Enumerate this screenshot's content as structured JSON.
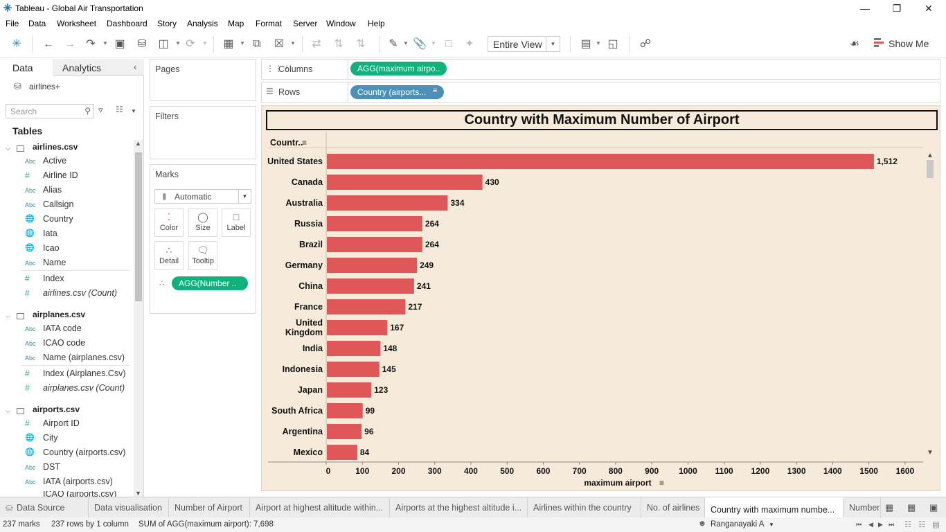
{
  "window": {
    "title": "Tableau - Global Air Transportation"
  },
  "menu": [
    "File",
    "Data",
    "Worksheet",
    "Dashboard",
    "Story",
    "Analysis",
    "Map",
    "Format",
    "Server",
    "Window",
    "Help"
  ],
  "toolbar": {
    "fit": "Entire View",
    "show_me": "Show Me"
  },
  "datapane": {
    "tab_data": "Data",
    "tab_analytics": "Analytics",
    "datasource": "airlines+",
    "search_placeholder": "Search",
    "tables_heading": "Tables",
    "tables": [
      {
        "name": "airlines.csv",
        "fields": [
          {
            "type": "Abc",
            "name": "Active"
          },
          {
            "type": "#",
            "name": "Airline ID"
          },
          {
            "type": "Abc",
            "name": "Alias"
          },
          {
            "type": "Abc",
            "name": "Callsign"
          },
          {
            "type": "geo",
            "name": "Country"
          },
          {
            "type": "geo",
            "name": "Iata"
          },
          {
            "type": "geo",
            "name": "Icao"
          },
          {
            "type": "Abc",
            "name": "Name"
          },
          {
            "type": "#",
            "name": "Index"
          },
          {
            "type": "#",
            "name": "airlines.csv (Count)"
          }
        ]
      },
      {
        "name": "airplanes.csv",
        "fields": [
          {
            "type": "Abc",
            "name": "IATA code"
          },
          {
            "type": "Abc",
            "name": "ICAO code"
          },
          {
            "type": "Abc",
            "name": "Name (airplanes.csv)"
          },
          {
            "type": "#",
            "name": "Index (Airplanes.Csv)"
          },
          {
            "type": "#",
            "name": "airplanes.csv (Count)"
          }
        ]
      },
      {
        "name": "airports.csv",
        "fields": [
          {
            "type": "#",
            "name": "Airport ID"
          },
          {
            "type": "geo",
            "name": "City"
          },
          {
            "type": "geo",
            "name": "Country (airports.csv)"
          },
          {
            "type": "Abc",
            "name": "DST"
          },
          {
            "type": "Abc",
            "name": "IATA (airports.csv)"
          },
          {
            "type": "Abc",
            "name": "ICAO (airports.csv)"
          }
        ]
      }
    ]
  },
  "cards": {
    "pages": "Pages",
    "filters": "Filters",
    "marks": "Marks",
    "mark_type": "Automatic",
    "mark_buttons": [
      "Color",
      "Size",
      "Label",
      "Detail",
      "Tooltip"
    ],
    "mark_pill": "AGG(Number .."
  },
  "shelves": {
    "columns_label": "Columns",
    "columns_pill": "AGG(maximum airpo..",
    "rows_label": "Rows",
    "rows_pill": "Country (airports..."
  },
  "chart_data": {
    "type": "bar",
    "orientation": "horizontal",
    "title": "Country with Maximum Number of Airport",
    "row_header": "Countr..",
    "xlabel": "maximum airport",
    "xlim": [
      0,
      1650
    ],
    "xticks": [
      0,
      100,
      200,
      300,
      400,
      500,
      600,
      700,
      800,
      900,
      1000,
      1100,
      1200,
      1300,
      1400,
      1500,
      1600
    ],
    "categories": [
      "United States",
      "Canada",
      "Australia",
      "Russia",
      "Brazil",
      "Germany",
      "China",
      "France",
      "United Kingdom",
      "India",
      "Indonesia",
      "Japan",
      "South Africa",
      "Argentina",
      "Mexico"
    ],
    "values": [
      1512,
      430,
      334,
      264,
      264,
      249,
      241,
      217,
      167,
      148,
      145,
      123,
      99,
      96,
      84
    ],
    "value_labels": [
      "1,512",
      "430",
      "334",
      "264",
      "264",
      "249",
      "241",
      "217",
      "167",
      "148",
      "145",
      "123",
      "99",
      "96",
      "84"
    ],
    "bar_color": "#e05759",
    "background": "#f6ebda"
  },
  "sheet_tabs": [
    "Data Source",
    "Data visualisation",
    "Number of Airport",
    "Airport at highest altitude within...",
    "Airports at the highest altitude i...",
    "Airlines within the country",
    "No. of airlines",
    "Country with maximum numbe...",
    "Number"
  ],
  "status": {
    "marks": "237 marks",
    "rows": "237 rows by 1 column",
    "sum": "SUM of AGG(maximum airport): 7,698",
    "user": "Ranganayaki A"
  }
}
